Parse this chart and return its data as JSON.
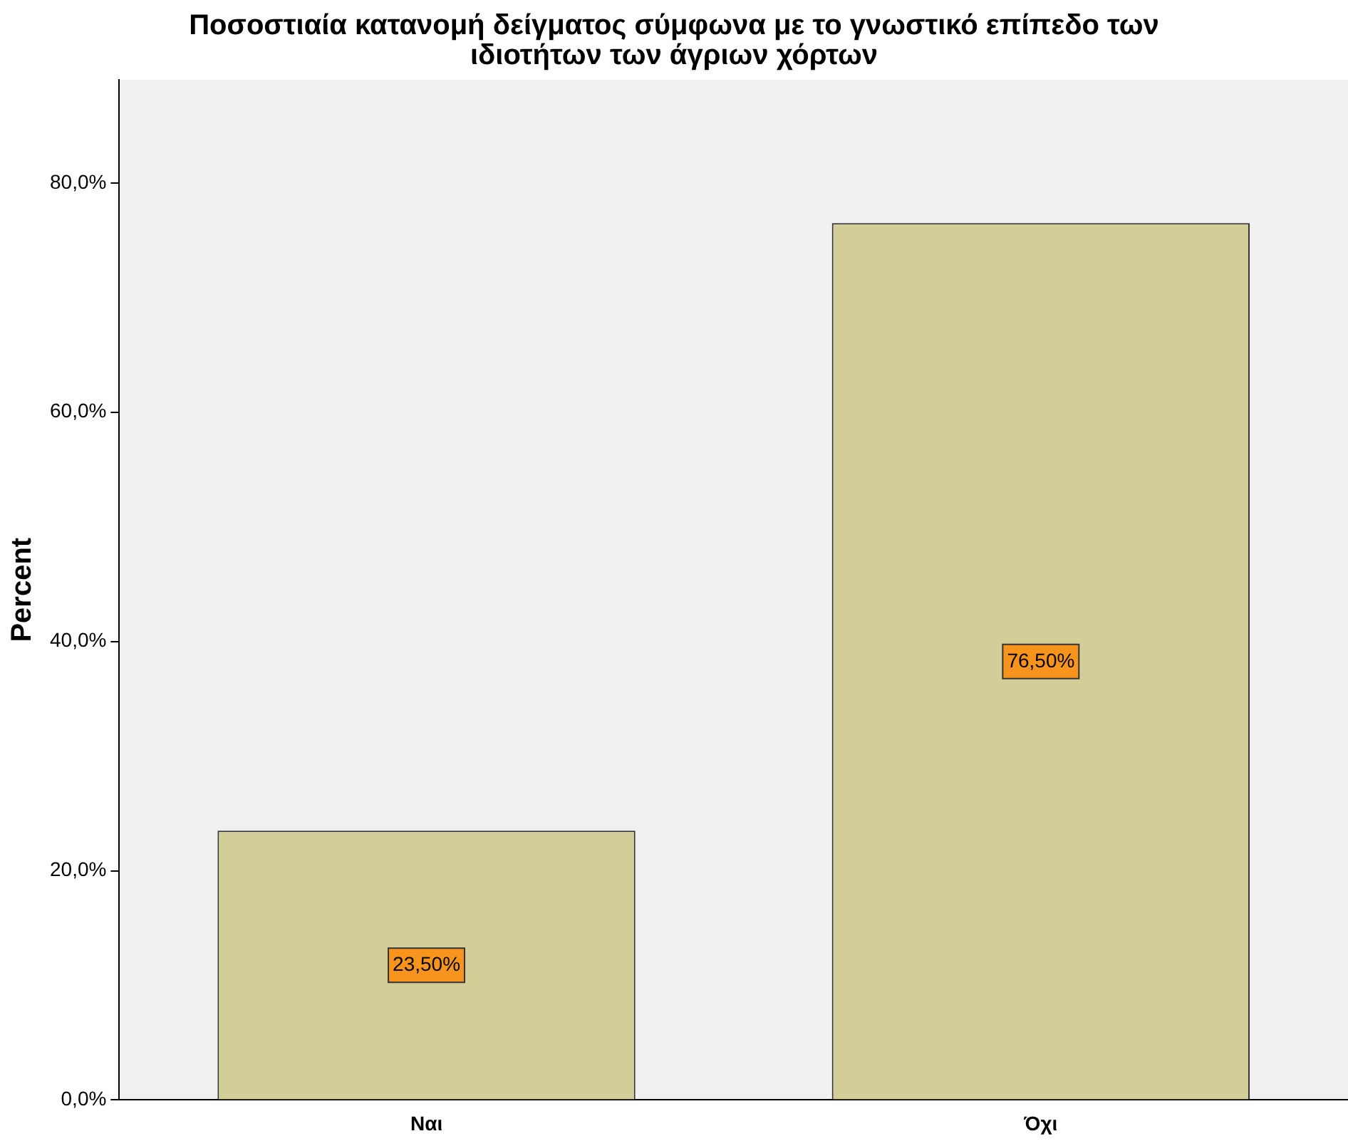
{
  "chart_data": {
    "type": "bar",
    "title": "Ποσοστιαία κατανομή δείγματος σύμφωνα με το γνωστικό επίπεδο των\nιδιοτήτων των άγριων χόρτων",
    "ylabel": "Percent",
    "categories": [
      "Ναι",
      "Όχι"
    ],
    "values": [
      23.5,
      76.5
    ],
    "color": "#d3ce97",
    "value_labels": [
      "23,50%",
      "76,50%"
    ],
    "ylim": [
      0,
      89
    ],
    "yticks": [
      {
        "value": 0,
        "label": "0,0%"
      },
      {
        "value": 20,
        "label": "20,0%"
      },
      {
        "value": 40,
        "label": "40,0%"
      },
      {
        "value": 60,
        "label": "60,0%"
      },
      {
        "value": 80,
        "label": "80,0%"
      }
    ],
    "grid": false,
    "legend": false
  }
}
